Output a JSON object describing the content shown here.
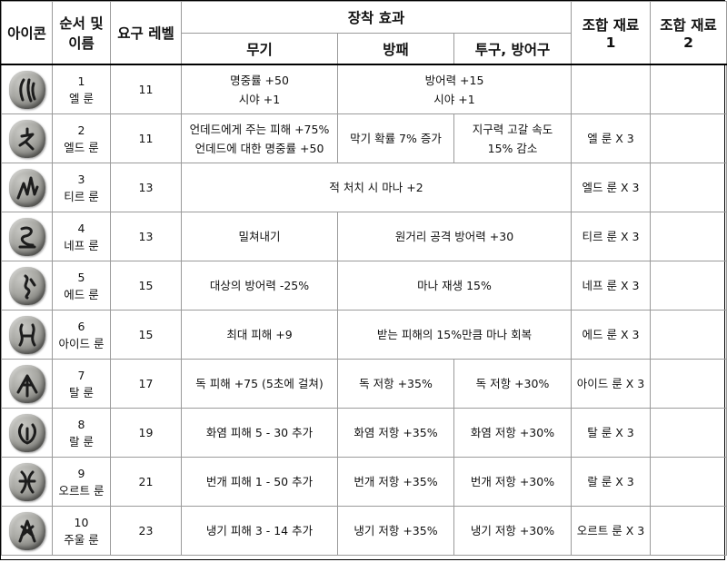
{
  "headers": {
    "icon": "아이콘",
    "order_name_line1": "순서 및",
    "order_name_line2": "이름",
    "level": "요구 레벨",
    "effects": "장착 효과",
    "weapon": "무기",
    "shield": "방패",
    "helm_armor": "투구, 방어구",
    "mat1_line1": "조합 재료",
    "mat1_line2": "1",
    "mat2_line1": "조합 재료",
    "mat2_line2": "2"
  },
  "runes": [
    {
      "num": "1",
      "name": "엘 룬",
      "icon": "el-rune-icon",
      "level": "11",
      "weapon": [
        "명중률 +50",
        "시야 +1"
      ],
      "shield": null,
      "helm": null,
      "shield_helm_merged": [
        "방어력 +15",
        "시야 +1"
      ],
      "all_merged": null,
      "mat1": "",
      "mat2": ""
    },
    {
      "num": "2",
      "name": "엘드 룬",
      "icon": "eld-rune-icon",
      "level": "11",
      "weapon": [
        "언데드에게 주는 피해 +75%",
        "언데드에 대한 명중률 +50"
      ],
      "shield": [
        "막기 확률 7% 증가"
      ],
      "helm": [
        "지구력 고갈 속도",
        "15% 감소"
      ],
      "shield_helm_merged": null,
      "all_merged": null,
      "mat1": "엘 룬 X 3",
      "mat2": ""
    },
    {
      "num": "3",
      "name": "티르 룬",
      "icon": "tir-rune-icon",
      "level": "13",
      "weapon": null,
      "shield": null,
      "helm": null,
      "shield_helm_merged": null,
      "all_merged": [
        "적 처치 시 마나 +2"
      ],
      "mat1": "엘드 룬 X 3",
      "mat2": ""
    },
    {
      "num": "4",
      "name": "네프 룬",
      "icon": "nef-rune-icon",
      "level": "13",
      "weapon": [
        "밀쳐내기"
      ],
      "shield": null,
      "helm": null,
      "shield_helm_merged": [
        "원거리 공격 방어력 +30"
      ],
      "all_merged": null,
      "mat1": "티르 룬 X 3",
      "mat2": ""
    },
    {
      "num": "5",
      "name": "에드 룬",
      "icon": "eth-rune-icon",
      "level": "15",
      "weapon": [
        "대상의 방어력 -25%"
      ],
      "shield": null,
      "helm": null,
      "shield_helm_merged": [
        "마나 재생 15%"
      ],
      "all_merged": null,
      "mat1": "네프 룬 X 3",
      "mat2": ""
    },
    {
      "num": "6",
      "name": "아이드 룬",
      "icon": "ith-rune-icon",
      "level": "15",
      "weapon": [
        "최대 피해 +9"
      ],
      "shield": null,
      "helm": null,
      "shield_helm_merged": [
        "받는 피해의 15%만큼 마나 회복"
      ],
      "all_merged": null,
      "mat1": "에드 룬 X 3",
      "mat2": ""
    },
    {
      "num": "7",
      "name": "탈 룬",
      "icon": "tal-rune-icon",
      "level": "17",
      "weapon": [
        "독 피해 +75 (5초에 걸쳐)"
      ],
      "shield": [
        "독 저항 +35%"
      ],
      "helm": [
        "독 저항 +30%"
      ],
      "shield_helm_merged": null,
      "all_merged": null,
      "mat1": "아이드 룬 X 3",
      "mat2": ""
    },
    {
      "num": "8",
      "name": "랄 룬",
      "icon": "ral-rune-icon",
      "level": "19",
      "weapon": [
        "화염 피해 5 - 30 추가"
      ],
      "shield": [
        "화염 저항 +35%"
      ],
      "helm": [
        "화염 저항 +30%"
      ],
      "shield_helm_merged": null,
      "all_merged": null,
      "mat1": "탈 룬 X 3",
      "mat2": ""
    },
    {
      "num": "9",
      "name": "오르트 룬",
      "icon": "ort-rune-icon",
      "level": "21",
      "weapon": [
        "번개 피해 1 - 50 추가"
      ],
      "shield": [
        "번개 저항 +35%"
      ],
      "helm": [
        "번개 저항 +30%"
      ],
      "shield_helm_merged": null,
      "all_merged": null,
      "mat1": "랄 룬 X 3",
      "mat2": ""
    },
    {
      "num": "10",
      "name": "주울 룬",
      "icon": "thul-rune-icon",
      "level": "23",
      "weapon": [
        "냉기 피해 3 - 14 추가"
      ],
      "shield": [
        "냉기 저항 +35%"
      ],
      "helm": [
        "냉기 저항 +30%"
      ],
      "shield_helm_merged": null,
      "all_merged": null,
      "mat1": "오르트 룬 X 3",
      "mat2": ""
    }
  ]
}
